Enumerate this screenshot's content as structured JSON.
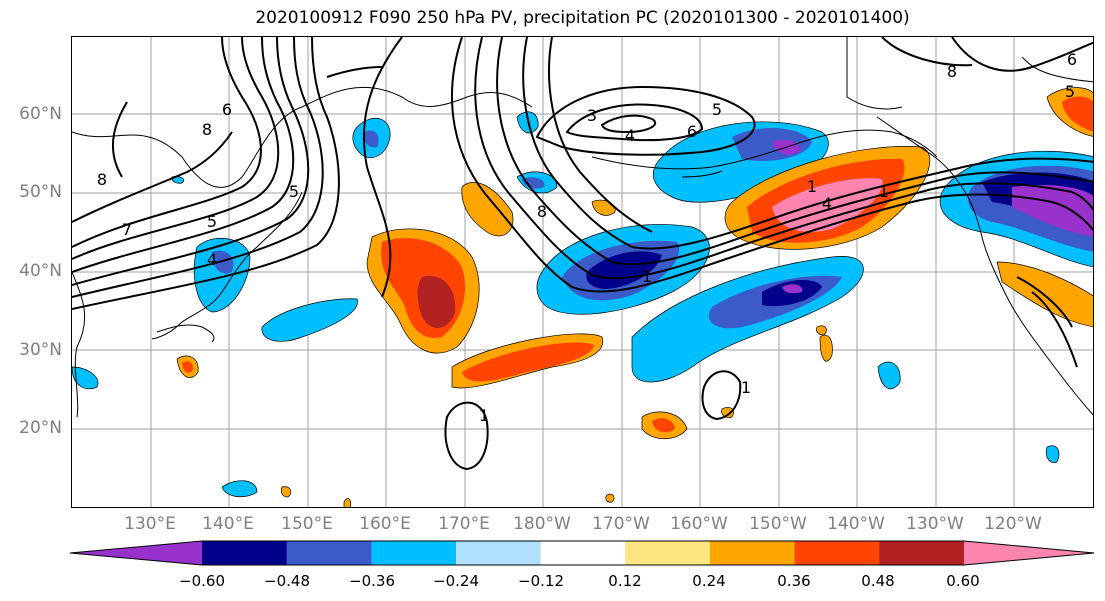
{
  "title": "2020100912 F090 250 hPa PV, precipitation PC (2020101300 - 2020101400)",
  "lat_labels": [
    "60°N",
    "50°N",
    "40°N",
    "30°N",
    "20°N"
  ],
  "lon_labels": [
    "130°E",
    "140°E",
    "150°E",
    "160°E",
    "170°E",
    "180°W",
    "170°W",
    "160°W",
    "150°W",
    "140°W",
    "130°W",
    "120°W"
  ],
  "colorbar": {
    "ticks": [
      "−0.60",
      "−0.48",
      "−0.36",
      "−0.24",
      "−0.12",
      "0.12",
      "0.24",
      "0.36",
      "0.48",
      "0.60"
    ],
    "colors": [
      "#9932cc",
      "#00008b",
      "#3a5bc8",
      "#00bfff",
      "#b0e0ff",
      "#ffffff",
      "#ffe680",
      "#ffa500",
      "#ff4500",
      "#b22222",
      "#ff85b0"
    ]
  },
  "contour_labels": [
    "8",
    "8",
    "7",
    "6",
    "5",
    "5",
    "4",
    "3",
    "4",
    "5",
    "6",
    "8",
    "6",
    "5",
    "1",
    "1",
    "4",
    "1",
    "1",
    "1",
    "8"
  ]
}
